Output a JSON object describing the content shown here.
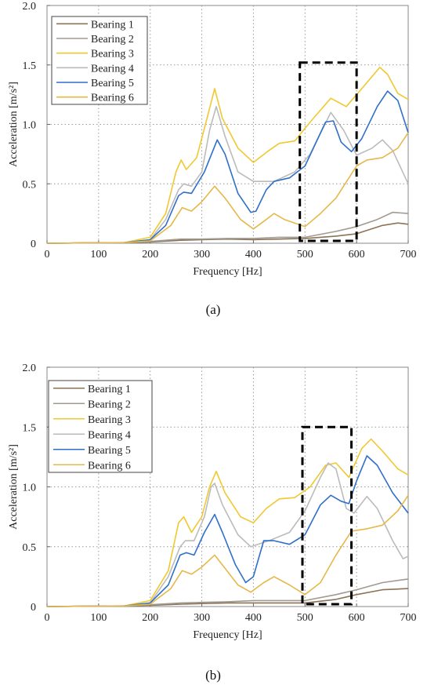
{
  "chart_data": [
    {
      "type": "line",
      "caption": "(a)",
      "xlabel": "Frequency [Hz]",
      "ylabel": "Acceleration [m/s²]",
      "xlim": [
        0,
        700
      ],
      "ylim": [
        0,
        2.0
      ],
      "xticks": [
        "0",
        "100",
        "200",
        "300",
        "400",
        "500",
        "600",
        "700"
      ],
      "yticks": [
        "0",
        "0.5",
        "1.0",
        "1.5",
        "2.0"
      ],
      "grid": true,
      "legend_position": "top-left",
      "dashed_box": {
        "x": [
          490,
          600
        ],
        "y": [
          0.02,
          1.52
        ]
      },
      "series": [
        {
          "name": "Bearing 1",
          "color": "#8b7355",
          "points": [
            [
              0,
              0
            ],
            [
              150,
              0.005
            ],
            [
              200,
              0.01
            ],
            [
              260,
              0.025
            ],
            [
              300,
              0.03
            ],
            [
              350,
              0.035
            ],
            [
              400,
              0.03
            ],
            [
              450,
              0.035
            ],
            [
              500,
              0.04
            ],
            [
              560,
              0.06
            ],
            [
              600,
              0.08
            ],
            [
              650,
              0.15
            ],
            [
              680,
              0.17
            ],
            [
              700,
              0.16
            ]
          ]
        },
        {
          "name": "Bearing 2",
          "color": "#a09a90",
          "points": [
            [
              0,
              0
            ],
            [
              150,
              0.005
            ],
            [
              200,
              0.015
            ],
            [
              260,
              0.035
            ],
            [
              300,
              0.035
            ],
            [
              350,
              0.04
            ],
            [
              400,
              0.04
            ],
            [
              450,
              0.05
            ],
            [
              500,
              0.05
            ],
            [
              560,
              0.1
            ],
            [
              600,
              0.14
            ],
            [
              640,
              0.2
            ],
            [
              670,
              0.26
            ],
            [
              700,
              0.25
            ]
          ]
        },
        {
          "name": "Bearing 3",
          "color": "#f0c830",
          "points": [
            [
              0,
              0
            ],
            [
              150,
              0.005
            ],
            [
              200,
              0.05
            ],
            [
              230,
              0.25
            ],
            [
              250,
              0.6
            ],
            [
              260,
              0.7
            ],
            [
              270,
              0.62
            ],
            [
              290,
              0.72
            ],
            [
              310,
              1.05
            ],
            [
              325,
              1.3
            ],
            [
              340,
              1.05
            ],
            [
              370,
              0.8
            ],
            [
              400,
              0.68
            ],
            [
              430,
              0.78
            ],
            [
              450,
              0.84
            ],
            [
              480,
              0.86
            ],
            [
              510,
              1.02
            ],
            [
              550,
              1.22
            ],
            [
              580,
              1.15
            ],
            [
              610,
              1.3
            ],
            [
              645,
              1.48
            ],
            [
              660,
              1.42
            ],
            [
              680,
              1.26
            ],
            [
              700,
              1.21
            ]
          ]
        },
        {
          "name": "Bearing 4",
          "color": "#bbbbbb",
          "points": [
            [
              0,
              0
            ],
            [
              150,
              0.005
            ],
            [
              200,
              0.03
            ],
            [
              230,
              0.2
            ],
            [
              255,
              0.45
            ],
            [
              265,
              0.5
            ],
            [
              280,
              0.48
            ],
            [
              300,
              0.6
            ],
            [
              315,
              0.95
            ],
            [
              328,
              1.15
            ],
            [
              345,
              0.9
            ],
            [
              370,
              0.6
            ],
            [
              400,
              0.52
            ],
            [
              440,
              0.52
            ],
            [
              480,
              0.6
            ],
            [
              510,
              0.75
            ],
            [
              550,
              1.1
            ],
            [
              575,
              0.95
            ],
            [
              600,
              0.74
            ],
            [
              630,
              0.8
            ],
            [
              650,
              0.87
            ],
            [
              670,
              0.78
            ],
            [
              700,
              0.5
            ]
          ]
        },
        {
          "name": "Bearing 5",
          "color": "#2f6fc9",
          "points": [
            [
              0,
              0
            ],
            [
              150,
              0.005
            ],
            [
              200,
              0.03
            ],
            [
              230,
              0.15
            ],
            [
              255,
              0.4
            ],
            [
              265,
              0.43
            ],
            [
              280,
              0.42
            ],
            [
              305,
              0.6
            ],
            [
              330,
              0.87
            ],
            [
              345,
              0.75
            ],
            [
              370,
              0.42
            ],
            [
              395,
              0.26
            ],
            [
              405,
              0.27
            ],
            [
              425,
              0.45
            ],
            [
              440,
              0.52
            ],
            [
              470,
              0.55
            ],
            [
              500,
              0.65
            ],
            [
              540,
              1.02
            ],
            [
              555,
              1.03
            ],
            [
              570,
              0.85
            ],
            [
              590,
              0.77
            ],
            [
              610,
              0.88
            ],
            [
              640,
              1.15
            ],
            [
              660,
              1.28
            ],
            [
              680,
              1.2
            ],
            [
              700,
              0.93
            ]
          ]
        },
        {
          "name": "Bearing 6",
          "color": "#e6b84a",
          "points": [
            [
              0,
              0
            ],
            [
              150,
              0.005
            ],
            [
              200,
              0.02
            ],
            [
              240,
              0.15
            ],
            [
              262,
              0.3
            ],
            [
              280,
              0.27
            ],
            [
              300,
              0.35
            ],
            [
              325,
              0.48
            ],
            [
              345,
              0.38
            ],
            [
              375,
              0.2
            ],
            [
              400,
              0.12
            ],
            [
              425,
              0.2
            ],
            [
              440,
              0.25
            ],
            [
              460,
              0.2
            ],
            [
              500,
              0.14
            ],
            [
              530,
              0.25
            ],
            [
              560,
              0.38
            ],
            [
              600,
              0.65
            ],
            [
              620,
              0.7
            ],
            [
              650,
              0.72
            ],
            [
              680,
              0.8
            ],
            [
              700,
              0.93
            ]
          ]
        }
      ]
    },
    {
      "type": "line",
      "caption": "(b)",
      "xlabel": "Frequency [Hz]",
      "ylabel": "Acceleration [m/s²]",
      "xlim": [
        0,
        700
      ],
      "ylim": [
        0,
        2.0
      ],
      "xticks": [
        "0",
        "100",
        "200",
        "300",
        "400",
        "500",
        "600",
        "700"
      ],
      "yticks": [
        "0",
        "0.5",
        "1.0",
        "1.5",
        "2.0"
      ],
      "grid": true,
      "legend_position": "top-left",
      "dashed_box": {
        "x": [
          495,
          590
        ],
        "y": [
          0.02,
          1.5
        ]
      },
      "series": [
        {
          "name": "Bearing 1",
          "color": "#8b7355",
          "points": [
            [
              0,
              0
            ],
            [
              150,
              0.005
            ],
            [
              200,
              0.01
            ],
            [
              260,
              0.02
            ],
            [
              300,
              0.025
            ],
            [
              350,
              0.03
            ],
            [
              400,
              0.03
            ],
            [
              450,
              0.03
            ],
            [
              500,
              0.03
            ],
            [
              560,
              0.06
            ],
            [
              600,
              0.1
            ],
            [
              650,
              0.14
            ],
            [
              700,
              0.15
            ]
          ]
        },
        {
          "name": "Bearing 2",
          "color": "#a09a90",
          "points": [
            [
              0,
              0
            ],
            [
              150,
              0.005
            ],
            [
              200,
              0.015
            ],
            [
              260,
              0.03
            ],
            [
              300,
              0.035
            ],
            [
              350,
              0.04
            ],
            [
              400,
              0.05
            ],
            [
              450,
              0.05
            ],
            [
              500,
              0.05
            ],
            [
              560,
              0.1
            ],
            [
              600,
              0.14
            ],
            [
              650,
              0.2
            ],
            [
              700,
              0.23
            ]
          ]
        },
        {
          "name": "Bearing 3",
          "color": "#f0c830",
          "points": [
            [
              0,
              0
            ],
            [
              150,
              0.005
            ],
            [
              200,
              0.05
            ],
            [
              235,
              0.3
            ],
            [
              255,
              0.7
            ],
            [
              265,
              0.75
            ],
            [
              280,
              0.62
            ],
            [
              300,
              0.75
            ],
            [
              315,
              1.0
            ],
            [
              328,
              1.13
            ],
            [
              345,
              0.95
            ],
            [
              375,
              0.75
            ],
            [
              400,
              0.7
            ],
            [
              425,
              0.82
            ],
            [
              450,
              0.9
            ],
            [
              480,
              0.91
            ],
            [
              510,
              1.0
            ],
            [
              540,
              1.18
            ],
            [
              560,
              1.2
            ],
            [
              585,
              1.08
            ],
            [
              610,
              1.32
            ],
            [
              628,
              1.4
            ],
            [
              650,
              1.3
            ],
            [
              680,
              1.15
            ],
            [
              700,
              1.1
            ]
          ]
        },
        {
          "name": "Bearing 4",
          "color": "#bbbbbb",
          "points": [
            [
              0,
              0
            ],
            [
              150,
              0.005
            ],
            [
              200,
              0.03
            ],
            [
              235,
              0.25
            ],
            [
              258,
              0.5
            ],
            [
              268,
              0.55
            ],
            [
              285,
              0.55
            ],
            [
              305,
              0.75
            ],
            [
              318,
              1.0
            ],
            [
              325,
              1.03
            ],
            [
              340,
              0.85
            ],
            [
              370,
              0.6
            ],
            [
              395,
              0.5
            ],
            [
              430,
              0.55
            ],
            [
              470,
              0.62
            ],
            [
              500,
              0.8
            ],
            [
              530,
              1.08
            ],
            [
              545,
              1.2
            ],
            [
              560,
              1.15
            ],
            [
              580,
              0.82
            ],
            [
              595,
              0.78
            ],
            [
              620,
              0.92
            ],
            [
              640,
              0.82
            ],
            [
              670,
              0.55
            ],
            [
              690,
              0.4
            ],
            [
              700,
              0.42
            ]
          ]
        },
        {
          "name": "Bearing 5",
          "color": "#2f6fc9",
          "points": [
            [
              0,
              0
            ],
            [
              150,
              0.005
            ],
            [
              200,
              0.03
            ],
            [
              235,
              0.18
            ],
            [
              258,
              0.43
            ],
            [
              270,
              0.45
            ],
            [
              285,
              0.43
            ],
            [
              305,
              0.62
            ],
            [
              325,
              0.77
            ],
            [
              340,
              0.62
            ],
            [
              365,
              0.35
            ],
            [
              385,
              0.2
            ],
            [
              400,
              0.25
            ],
            [
              420,
              0.55
            ],
            [
              440,
              0.55
            ],
            [
              470,
              0.52
            ],
            [
              500,
              0.6
            ],
            [
              530,
              0.85
            ],
            [
              550,
              0.93
            ],
            [
              570,
              0.88
            ],
            [
              585,
              0.86
            ],
            [
              600,
              1.05
            ],
            [
              620,
              1.26
            ],
            [
              640,
              1.18
            ],
            [
              670,
              0.95
            ],
            [
              700,
              0.78
            ]
          ]
        },
        {
          "name": "Bearing 6",
          "color": "#e6b84a",
          "points": [
            [
              0,
              0
            ],
            [
              150,
              0.005
            ],
            [
              200,
              0.02
            ],
            [
              240,
              0.15
            ],
            [
              262,
              0.3
            ],
            [
              280,
              0.27
            ],
            [
              300,
              0.33
            ],
            [
              325,
              0.43
            ],
            [
              345,
              0.32
            ],
            [
              370,
              0.18
            ],
            [
              395,
              0.12
            ],
            [
              420,
              0.2
            ],
            [
              440,
              0.25
            ],
            [
              470,
              0.18
            ],
            [
              500,
              0.1
            ],
            [
              530,
              0.2
            ],
            [
              560,
              0.43
            ],
            [
              590,
              0.63
            ],
            [
              620,
              0.65
            ],
            [
              650,
              0.68
            ],
            [
              680,
              0.8
            ],
            [
              700,
              0.93
            ]
          ]
        }
      ]
    }
  ]
}
